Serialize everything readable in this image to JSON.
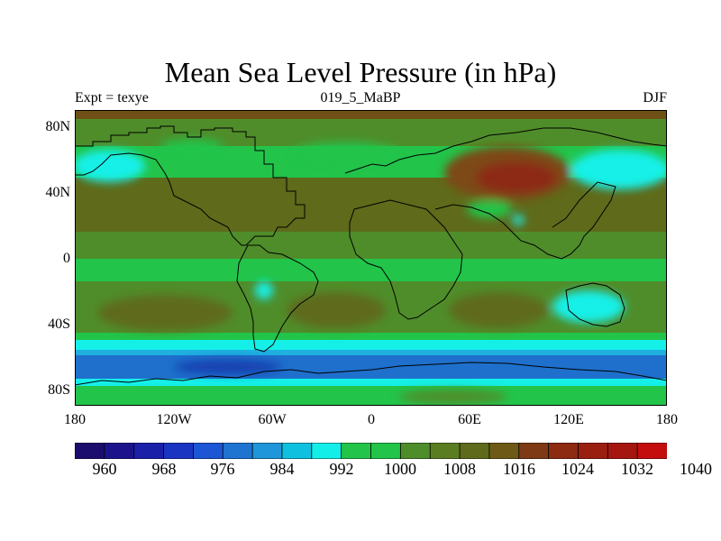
{
  "title": "Mean Sea Level Pressure (in hPa)",
  "subtitle_left": "Expt = texye",
  "subtitle_center": "019_5_MaBP",
  "subtitle_right": "DJF",
  "lat_labels": [
    "80N",
    "40N",
    "0",
    "40S",
    "80S"
  ],
  "lon_labels": [
    "180",
    "120W",
    "60W",
    "0",
    "60E",
    "120E",
    "180"
  ],
  "colorbar": {
    "labels": [
      "960",
      "968",
      "976",
      "984",
      "992",
      "1000",
      "1008",
      "1016",
      "1024",
      "1032",
      "1040"
    ],
    "colors": [
      "#1a0d6e",
      "#1c138c",
      "#1a20a8",
      "#1a35c2",
      "#1d56d4",
      "#1e74d0",
      "#1f96d9",
      "#0fc1de",
      "#14eee8",
      "#22c44a",
      "#22c44a",
      "#4f8d2a",
      "#5a7d22",
      "#5f6a1a",
      "#6e5a16",
      "#7d3a14",
      "#8c2a12",
      "#9a1f10",
      "#a51610",
      "#c40e0e"
    ]
  },
  "map_colors": {
    "very_low": "#183fb0",
    "low": "#1f70cc",
    "mid_low": "#1fb0e0",
    "cyan": "#14f0e8",
    "green": "#22c44a",
    "olive_green": "#4f8d2a",
    "olive": "#5f6a1a",
    "brown": "#7d4a14",
    "dark_red": "#8c2a12"
  }
}
